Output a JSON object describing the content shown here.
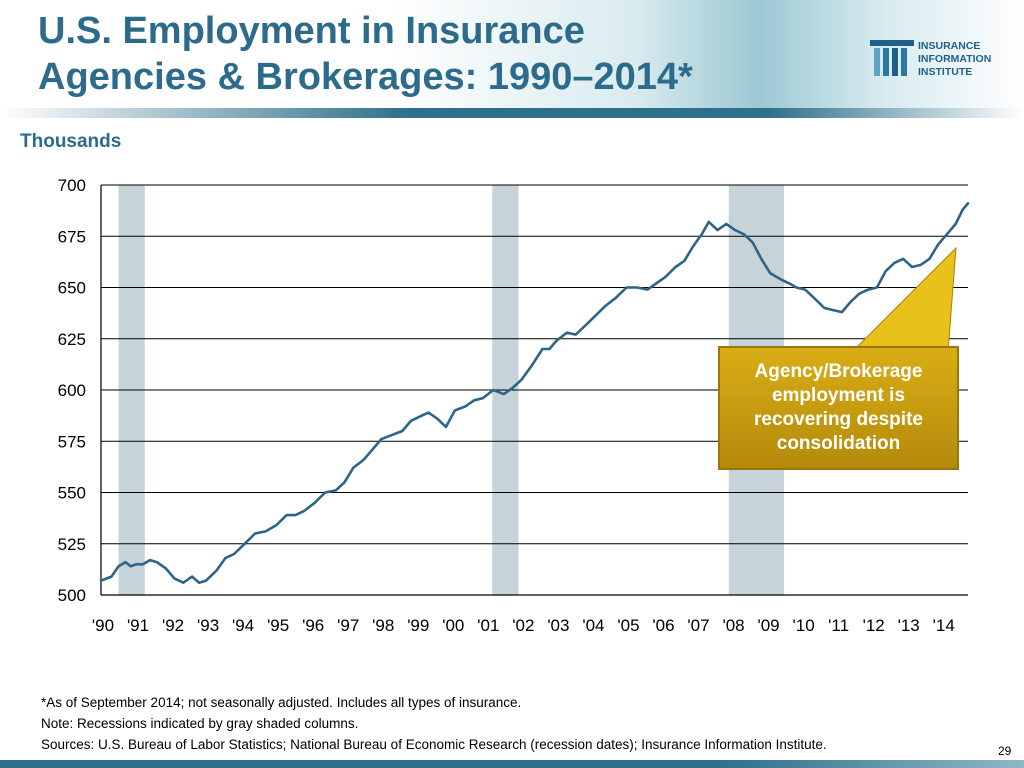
{
  "slide": {
    "title_line1": "U.S. Employment in Insurance",
    "title_line2": "Agencies & Brokerages: 1990–2014*",
    "page_number": "29",
    "logo": {
      "line1": "INSURANCE",
      "line2": "INFORMATION",
      "line3": "INSTITUTE",
      "icon": "iii-bars-logo"
    },
    "callout": "Agency/Brokerage employment is recovering despite consolidation",
    "notes": [
      "*As of September 2014; not seasonally adjusted. Includes all types of insurance.",
      "Note: Recessions indicated by gray shaded columns.",
      "Sources: U.S. Bureau of Labor Statistics;  National Bureau of Economic Research (recession dates); Insurance Information Institute."
    ],
    "colors": {
      "title": "#2c6b8c",
      "line": "#2e6488",
      "recession": "#b3c6cc",
      "callout": "#c99e10"
    }
  },
  "chart_data": {
    "type": "line",
    "title": "",
    "xlabel": "",
    "ylabel": "Thousands",
    "xlim": [
      1990,
      2014.75
    ],
    "ylim": [
      500,
      700
    ],
    "yticks": [
      500,
      525,
      550,
      575,
      600,
      625,
      650,
      675,
      700
    ],
    "ytick_labels": [
      "500",
      "525",
      "550",
      "575",
      "600",
      "625",
      "650",
      "675",
      "700"
    ],
    "xtick_labels": [
      "'90",
      "'91",
      "'92",
      "'93",
      "'94",
      "'95",
      "'96",
      "'97",
      "'98",
      "'99",
      "'00",
      "'01",
      "'02",
      "'03",
      "'04",
      "'05",
      "'06",
      "'07",
      "'08",
      "'09",
      "'10",
      "'11",
      "'12",
      "'13",
      "'14"
    ],
    "grid": "horizontal",
    "recessions": [
      {
        "start": 1990.5,
        "end": 1991.25
      },
      {
        "start": 2001.17,
        "end": 2001.92
      },
      {
        "start": 2007.92,
        "end": 2009.5
      }
    ],
    "series": [
      {
        "values": [
          [
            1990.0,
            507
          ],
          [
            1990.3,
            509
          ],
          [
            1990.5,
            514
          ],
          [
            1990.7,
            516
          ],
          [
            1990.85,
            514
          ],
          [
            1991.0,
            515
          ],
          [
            1991.2,
            515
          ],
          [
            1991.4,
            517
          ],
          [
            1991.6,
            516
          ],
          [
            1991.85,
            513
          ],
          [
            1992.1,
            508
          ],
          [
            1992.35,
            506
          ],
          [
            1992.6,
            509
          ],
          [
            1992.8,
            506
          ],
          [
            1993.0,
            507
          ],
          [
            1993.3,
            512
          ],
          [
            1993.55,
            518
          ],
          [
            1993.8,
            520
          ],
          [
            1994.1,
            525
          ],
          [
            1994.4,
            530
          ],
          [
            1994.7,
            531
          ],
          [
            1995.0,
            534
          ],
          [
            1995.3,
            539
          ],
          [
            1995.55,
            539
          ],
          [
            1995.8,
            541
          ],
          [
            1996.1,
            545
          ],
          [
            1996.4,
            550
          ],
          [
            1996.7,
            551
          ],
          [
            1996.95,
            555
          ],
          [
            1997.2,
            562
          ],
          [
            1997.5,
            566
          ],
          [
            1997.75,
            571
          ],
          [
            1998.0,
            576
          ],
          [
            1998.3,
            578
          ],
          [
            1998.6,
            580
          ],
          [
            1998.85,
            585
          ],
          [
            1999.1,
            587
          ],
          [
            1999.35,
            589
          ],
          [
            1999.6,
            586
          ],
          [
            1999.85,
            582
          ],
          [
            2000.1,
            590
          ],
          [
            2000.4,
            592
          ],
          [
            2000.65,
            595
          ],
          [
            2000.9,
            596
          ],
          [
            2001.2,
            600
          ],
          [
            2001.5,
            598
          ],
          [
            2001.75,
            601
          ],
          [
            2002.0,
            605
          ],
          [
            2002.3,
            612
          ],
          [
            2002.6,
            620
          ],
          [
            2002.8,
            620
          ],
          [
            2003.0,
            624
          ],
          [
            2003.3,
            628
          ],
          [
            2003.55,
            627
          ],
          [
            2003.8,
            631
          ],
          [
            2004.1,
            636
          ],
          [
            2004.4,
            641
          ],
          [
            2004.7,
            645
          ],
          [
            2005.0,
            650
          ],
          [
            2005.3,
            650
          ],
          [
            2005.6,
            649
          ],
          [
            2005.85,
            652
          ],
          [
            2006.1,
            655
          ],
          [
            2006.4,
            660
          ],
          [
            2006.65,
            663
          ],
          [
            2006.9,
            670
          ],
          [
            2007.15,
            676
          ],
          [
            2007.35,
            682
          ],
          [
            2007.6,
            678
          ],
          [
            2007.85,
            681
          ],
          [
            2008.1,
            678
          ],
          [
            2008.35,
            676
          ],
          [
            2008.6,
            672
          ],
          [
            2008.85,
            664
          ],
          [
            2009.1,
            657
          ],
          [
            2009.4,
            654
          ],
          [
            2009.65,
            652
          ],
          [
            2009.85,
            650
          ],
          [
            2010.1,
            649
          ],
          [
            2010.35,
            645
          ],
          [
            2010.65,
            640
          ],
          [
            2010.9,
            639
          ],
          [
            2011.15,
            638
          ],
          [
            2011.4,
            643
          ],
          [
            2011.65,
            647
          ],
          [
            2011.9,
            649
          ],
          [
            2012.15,
            650
          ],
          [
            2012.4,
            658
          ],
          [
            2012.65,
            662
          ],
          [
            2012.9,
            664
          ],
          [
            2013.15,
            660
          ],
          [
            2013.4,
            661
          ],
          [
            2013.65,
            664
          ],
          [
            2013.9,
            671
          ],
          [
            2014.15,
            676
          ],
          [
            2014.4,
            681
          ],
          [
            2014.6,
            688
          ],
          [
            2014.75,
            691
          ]
        ]
      }
    ]
  }
}
